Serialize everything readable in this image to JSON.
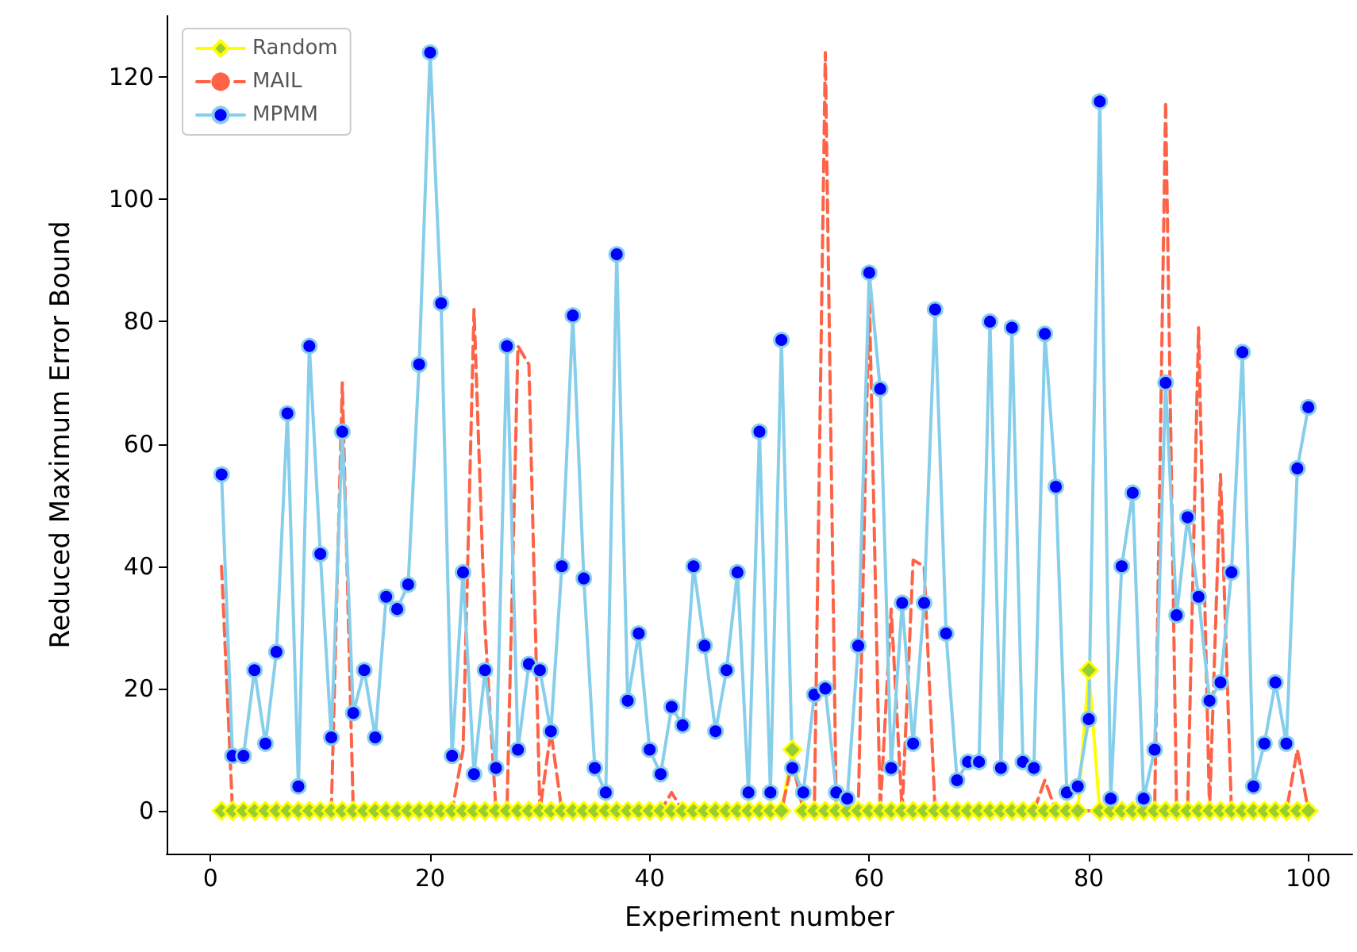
{
  "chart_data": {
    "type": "line",
    "xlabel": "Experiment number",
    "ylabel": "Reduced Maximum Error Bound",
    "x": [
      1,
      2,
      3,
      4,
      5,
      6,
      7,
      8,
      9,
      10,
      11,
      12,
      13,
      14,
      15,
      16,
      17,
      18,
      19,
      20,
      21,
      22,
      23,
      24,
      25,
      26,
      27,
      28,
      29,
      30,
      31,
      32,
      33,
      34,
      35,
      36,
      37,
      38,
      39,
      40,
      41,
      42,
      43,
      44,
      45,
      46,
      47,
      48,
      49,
      50,
      51,
      52,
      53,
      54,
      55,
      56,
      57,
      58,
      59,
      60,
      61,
      62,
      63,
      64,
      65,
      66,
      67,
      68,
      69,
      70,
      71,
      72,
      73,
      74,
      75,
      76,
      77,
      78,
      79,
      80,
      81,
      82,
      83,
      84,
      85,
      86,
      87,
      88,
      89,
      90,
      91,
      92,
      93,
      94,
      95,
      96,
      97,
      98,
      99,
      100
    ],
    "series": [
      {
        "name": "Random",
        "color": "#ffff00",
        "marker": "diamond",
        "line_style": "solid",
        "values": [
          0,
          0,
          0,
          0,
          0,
          0,
          0,
          0,
          0,
          0,
          0,
          0,
          0,
          0,
          0,
          0,
          0,
          0,
          0,
          0,
          0,
          0,
          0,
          0,
          0,
          0,
          0,
          0,
          0,
          0,
          0,
          0,
          0,
          0,
          0,
          0,
          0,
          0,
          0,
          0,
          0,
          0,
          0,
          0,
          0,
          0,
          0,
          0,
          0,
          0,
          0,
          0,
          10,
          0,
          0,
          0,
          0,
          0,
          0,
          0,
          0,
          0,
          0,
          0,
          0,
          0,
          0,
          0,
          0,
          0,
          0,
          0,
          0,
          0,
          0,
          0,
          0,
          0,
          0,
          23,
          0,
          0,
          0,
          0,
          0,
          0,
          0,
          0,
          0,
          0,
          0,
          0,
          0,
          0,
          0,
          0,
          0,
          0,
          0,
          0
        ]
      },
      {
        "name": "MAIL",
        "color": "#ff6347",
        "marker": "none",
        "line_style": "dashed",
        "values": [
          40,
          0,
          0,
          0,
          0,
          0,
          0,
          0,
          0,
          0,
          0,
          70,
          0,
          0,
          0,
          0,
          0,
          0,
          0,
          0,
          0,
          0,
          10,
          82,
          30,
          0,
          0,
          76,
          73,
          0,
          13,
          0,
          0,
          0,
          0,
          0,
          0,
          0,
          0,
          0,
          0,
          3,
          0,
          0,
          0,
          0,
          0,
          0,
          0,
          0,
          0,
          0,
          8,
          0,
          0,
          124,
          0,
          0,
          0,
          85,
          0,
          33,
          0,
          41,
          40,
          0,
          0,
          0,
          0,
          0,
          0,
          0,
          0,
          0,
          0,
          5,
          0,
          0,
          0,
          0,
          0,
          0,
          0,
          0,
          0,
          0,
          116,
          0,
          0,
          79,
          0,
          55,
          0,
          0,
          0,
          0,
          0,
          0,
          10,
          0
        ]
      },
      {
        "name": "MPMM",
        "color": "#87ceeb",
        "marker": "circle",
        "line_style": "solid",
        "values": [
          55,
          9,
          9,
          23,
          11,
          26,
          65,
          4,
          76,
          42,
          12,
          62,
          16,
          23,
          12,
          35,
          33,
          37,
          73,
          124,
          83,
          9,
          39,
          6,
          23,
          7,
          76,
          10,
          24,
          23,
          13,
          40,
          81,
          38,
          7,
          3,
          91,
          18,
          29,
          10,
          6,
          17,
          14,
          40,
          27,
          13,
          23,
          39,
          3,
          62,
          3,
          77,
          7,
          3,
          19,
          20,
          3,
          2,
          27,
          88,
          69,
          7,
          34,
          11,
          34,
          82,
          29,
          5,
          8,
          8,
          80,
          7,
          79,
          8,
          7,
          78,
          53,
          3,
          4,
          15,
          116,
          2,
          40,
          52,
          2,
          10,
          70,
          32,
          48,
          35,
          18,
          21,
          39,
          75,
          4,
          11,
          21,
          11,
          56,
          66
        ]
      }
    ],
    "xlim": [
      -4,
      104
    ],
    "xticks": [
      0,
      20,
      40,
      60,
      80,
      100
    ],
    "ylim": [
      -7,
      130
    ],
    "yticks": [
      0,
      20,
      40,
      60,
      80,
      100,
      120
    ],
    "grid": false,
    "legend": "top left"
  }
}
